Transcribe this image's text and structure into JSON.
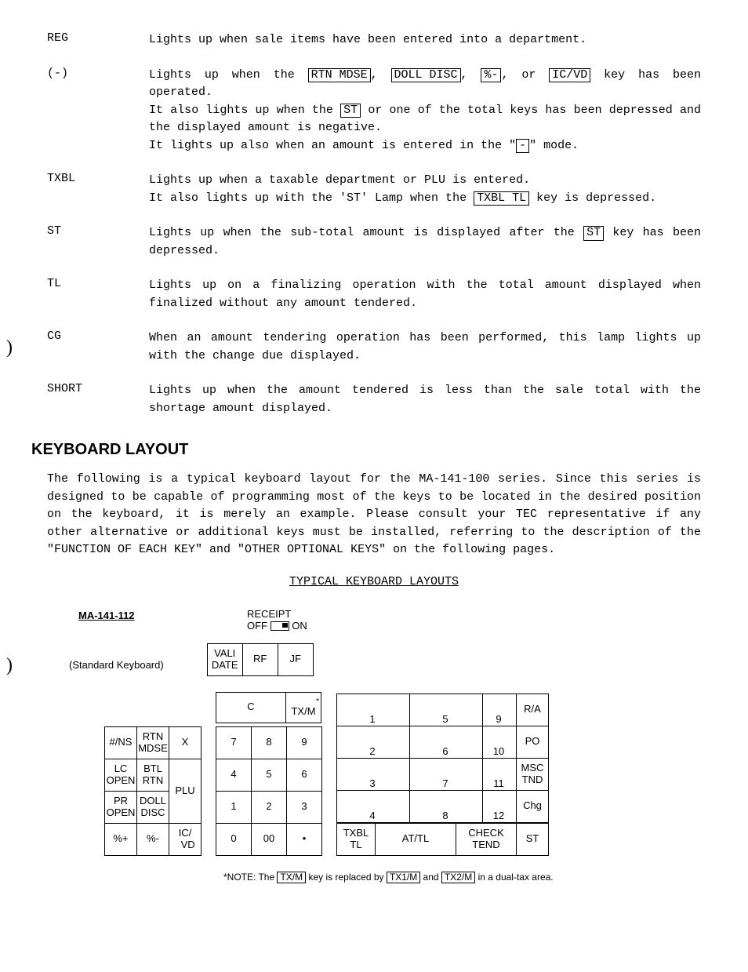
{
  "defs": [
    {
      "term": "REG",
      "desc_parts": [
        {
          "t": "Lights up when sale items have been entered into a department."
        }
      ]
    },
    {
      "term": "(-)",
      "desc_parts": [
        {
          "t": "Lights up when the "
        },
        {
          "k": "RTN MDSE"
        },
        {
          "t": ", "
        },
        {
          "k": "DOLL DISC"
        },
        {
          "t": ", "
        },
        {
          "k": "%-"
        },
        {
          "t": ",             or "
        },
        {
          "k": "IC/VD"
        },
        {
          "t": "   key has been operated."
        },
        {
          "br": true
        },
        {
          "t": "It also lights up when the "
        },
        {
          "k": "ST"
        },
        {
          "t": " or one of the total keys has been depressed and the displayed amount is negative."
        },
        {
          "br": true
        },
        {
          "t": "It lights up also when an amount is entered in the \""
        },
        {
          "k": "-"
        },
        {
          "t": "\" mode."
        }
      ]
    },
    {
      "term": "TXBL",
      "desc_parts": [
        {
          "t": "Lights up when a taxable department or PLU is entered."
        },
        {
          "br": true
        },
        {
          "t": "It also lights up with the 'ST' Lamp when the "
        },
        {
          "k": "TXBL TL"
        },
        {
          "t": " key is depressed."
        }
      ]
    },
    {
      "term": "ST",
      "desc_parts": [
        {
          "t": "Lights up when the sub-total amount is displayed after the "
        },
        {
          "k": "ST"
        },
        {
          "t": " key has been depressed."
        }
      ]
    },
    {
      "term": "TL",
      "desc_parts": [
        {
          "t": "Lights up on a finalizing operation with the total amount displayed when finalized without any amount tendered."
        }
      ]
    },
    {
      "term": "CG",
      "desc_parts": [
        {
          "t": "When an amount tendering operation has been performed, this lamp lights up with the change due displayed."
        }
      ]
    },
    {
      "term": "SHORT",
      "desc_parts": [
        {
          "t": "Lights up when the amount tendered is less than the sale total with the shortage amount displayed."
        }
      ]
    }
  ],
  "heading": "KEYBOARD LAYOUT",
  "paragraph": "The following is a typical keyboard layout for the MA-141-100 series.  Since this series is designed to be capable of programming most of the keys to be located in the desired position on the keyboard, it is merely an example. Please consult your TEC representative if any other alternative or additional keys must be installed, referring to the description of the \"FUNCTION OF EACH KEY\" and \"OTHER OPTIONAL KEYS\" on the following pages.",
  "layouts_title": "TYPICAL KEYBOARD LAYOUTS",
  "receipt": {
    "label": "RECEIPT",
    "off": "OFF",
    "on": "ON"
  },
  "model": "MA-141-112",
  "std": "(Standard Keyboard)",
  "toprow": [
    "VALI\nDATE",
    "RF",
    "JF"
  ],
  "leftkeys": [
    [
      "#/NS",
      "RTN\nMDSE",
      "X",
      ""
    ],
    [
      "LC\nOPEN",
      "BTL\nRTN",
      "",
      ""
    ],
    [
      "PR\nOPEN",
      "DOLL\nDISC",
      "PLU",
      ""
    ],
    [
      "%+",
      "%-",
      "IC/\n  VD",
      ""
    ]
  ],
  "numpad_top": [
    "C",
    "*\nTX/M"
  ],
  "numpad": [
    [
      "7",
      "8",
      "9"
    ],
    [
      "4",
      "5",
      "6"
    ],
    [
      "1",
      "2",
      "3"
    ],
    [
      "0",
      "00",
      "•"
    ]
  ],
  "dept_nums": [
    [
      "1",
      "5",
      "9"
    ],
    [
      "2",
      "6",
      "10"
    ],
    [
      "3",
      "7",
      "11"
    ],
    [
      "4",
      "8",
      "12"
    ]
  ],
  "right_col": [
    "R/A",
    "PO",
    "MSC\nTND",
    "Chg"
  ],
  "bottom_right": [
    "TXBL\nTL",
    "AT/TL",
    "CHECK\nTEND",
    "ST"
  ],
  "note_pre": "*NOTE: The ",
  "note_k1": "TX/M",
  "note_mid": " key is replaced by ",
  "note_k2": "TX1/M",
  "note_and": " and ",
  "note_k3": "TX2/M",
  "note_post": " in a dual-tax area.",
  "colors": {
    "text": "#000000",
    "bg": "#ffffff",
    "border": "#000000"
  }
}
